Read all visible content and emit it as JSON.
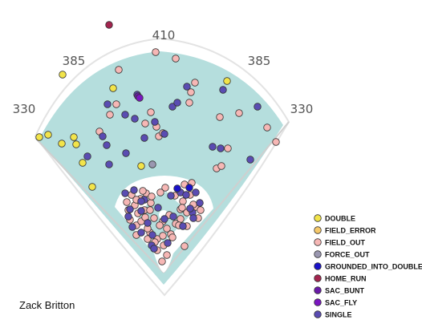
{
  "chart_data": {
    "type": "scatter",
    "title": "",
    "player_name": "Zack Britton",
    "distance_labels": [
      "330",
      "385",
      "410",
      "385",
      "330"
    ],
    "legend": [
      {
        "name": "DOUBLE",
        "color": "#f2e44a"
      },
      {
        "name": "FIELD_ERROR",
        "color": "#f6c96a"
      },
      {
        "name": "FIELD_OUT",
        "color": "#f6b7b5"
      },
      {
        "name": "FORCE_OUT",
        "color": "#9a97b0"
      },
      {
        "name": "GROUNDED_INTO_DOUBLE_PLAY",
        "color": "#1a12c9"
      },
      {
        "name": "HOME_RUN",
        "color": "#a3244e"
      },
      {
        "name": "SAC_BUNT",
        "color": "#6a1aa8"
      },
      {
        "name": "SAC_FLY",
        "color": "#7a16c0"
      },
      {
        "name": "SINGLE",
        "color": "#5a4cb2"
      }
    ],
    "series": [
      {
        "name": "DOUBLE",
        "points": [
          [
            78,
            93
          ],
          [
            141,
            110
          ],
          [
            283,
            101
          ],
          [
            49,
            171
          ],
          [
            60,
            168
          ],
          [
            77,
            179
          ],
          [
            92,
            171
          ],
          [
            95,
            180
          ],
          [
            103,
            203
          ],
          [
            115,
            233
          ],
          [
            176,
            207
          ]
        ]
      },
      {
        "name": "HOME_RUN",
        "points": [
          [
            136,
            31
          ]
        ]
      },
      {
        "name": "FORCE_OUT",
        "points": [
          [
            190,
            205
          ]
        ]
      },
      {
        "name": "GROUNDED_INTO_DOUBLE_PLAY",
        "points": [
          [
            221,
            235
          ],
          [
            236,
            234
          ]
        ]
      },
      {
        "name": "SAC_BUNT",
        "points": [
          [
            172,
            120
          ]
        ]
      },
      {
        "name": "SAC_FLY",
        "points": [
          [
            174,
            122
          ]
        ]
      },
      {
        "name": "FIELD_OUT",
        "points": [
          [
            148,
            87
          ],
          [
            194,
            65
          ],
          [
            219,
            73
          ],
          [
            243,
            103
          ],
          [
            238,
            115
          ],
          [
            236,
            128
          ],
          [
            145,
            130
          ],
          [
            137,
            143
          ],
          [
            188,
            140
          ],
          [
            181,
            154
          ],
          [
            274,
            146
          ],
          [
            298,
            141
          ],
          [
            333,
            159
          ],
          [
            124,
            164
          ],
          [
            198,
            170
          ],
          [
            203,
            166
          ],
          [
            195,
            158
          ],
          [
            284,
            185
          ],
          [
            270,
            210
          ],
          [
            276,
            207
          ],
          [
            344,
            177
          ],
          [
            206,
            234
          ],
          [
            200,
            240
          ],
          [
            164,
            243
          ],
          [
            182,
            241
          ],
          [
            175,
            248
          ],
          [
            168,
            256
          ],
          [
            180,
            262
          ],
          [
            188,
            253
          ],
          [
            172,
            266
          ],
          [
            192,
            272
          ],
          [
            211,
            268
          ],
          [
            203,
            276
          ],
          [
            219,
            279
          ],
          [
            187,
            290
          ],
          [
            196,
            298
          ],
          [
            204,
            306
          ],
          [
            202,
            326
          ],
          [
            208,
            318
          ],
          [
            213,
            292
          ],
          [
            230,
            307
          ],
          [
            218,
            244
          ],
          [
            228,
            251
          ],
          [
            237,
            243
          ],
          [
            244,
            258
          ],
          [
            233,
            265
          ],
          [
            247,
            272
          ],
          [
            225,
            273
          ],
          [
            215,
            296
          ],
          [
            208,
            285
          ],
          [
            162,
            274
          ],
          [
            170,
            281
          ],
          [
            184,
            285
          ],
          [
            176,
            276
          ],
          [
            160,
            262
          ],
          [
            178,
            238
          ],
          [
            189,
            245
          ],
          [
            193,
            302
          ],
          [
            239,
            228
          ],
          [
            230,
            230
          ],
          [
            241,
            255
          ],
          [
            250,
            262
          ],
          [
            233,
            282
          ],
          [
            225,
            261
          ],
          [
            223,
            281
          ],
          [
            170,
            249
          ],
          [
            158,
            252
          ],
          [
            187,
            262
          ],
          [
            181,
            271
          ],
          [
            227,
            259
          ],
          [
            203,
            294
          ],
          [
            199,
            281
          ],
          [
            196,
            312
          ],
          [
            184,
            298
          ],
          [
            170,
            293
          ]
        ]
      },
      {
        "name": "SINGLE",
        "points": [
          [
            134,
            130
          ],
          [
            156,
            143
          ],
          [
            171,
            118
          ],
          [
            215,
            133
          ],
          [
            221,
            128
          ],
          [
            233,
            108
          ],
          [
            278,
            112
          ],
          [
            321,
            133
          ],
          [
            168,
            148
          ],
          [
            193,
            152
          ],
          [
            205,
            167
          ],
          [
            180,
            172
          ],
          [
            157,
            191
          ],
          [
            133,
            181
          ],
          [
            128,
            170
          ],
          [
            109,
            195
          ],
          [
            136,
            205
          ],
          [
            265,
            183
          ],
          [
            275,
            185
          ],
          [
            312,
            199
          ],
          [
            225,
            240
          ],
          [
            232,
            243
          ],
          [
            244,
            240
          ],
          [
            249,
            253
          ],
          [
            240,
            265
          ],
          [
            216,
            270
          ],
          [
            228,
            282
          ],
          [
            205,
            273
          ],
          [
            180,
            249
          ],
          [
            160,
            270
          ],
          [
            165,
            283
          ],
          [
            176,
            290
          ],
          [
            189,
            306
          ],
          [
            192,
            310
          ],
          [
            162,
            261
          ],
          [
            184,
            278
          ],
          [
            197,
            259
          ],
          [
            176,
            251
          ],
          [
            237,
            260
          ],
          [
            209,
            303
          ],
          [
            190,
            293
          ],
          [
            241,
            272
          ],
          [
            156,
            241
          ],
          [
            167,
            237
          ],
          [
            176,
            263
          ],
          [
            213,
            244
          ]
        ]
      }
    ]
  }
}
